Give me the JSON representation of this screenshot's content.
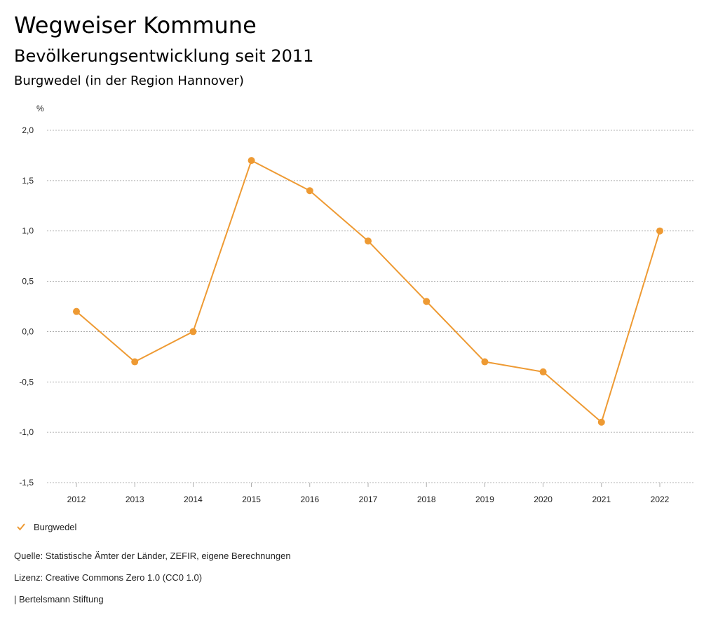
{
  "header": {
    "title": "Wegweiser Kommune",
    "subtitle": "Bevölkerungsentwicklung seit 2011",
    "region": "Burgwedel (in der Region Hannover)"
  },
  "chart_data": {
    "type": "line",
    "title": "Bevölkerungsentwicklung seit 2011",
    "subtitle": "Burgwedel (in der Region Hannover)",
    "ylabel": "%",
    "xlabel": "",
    "categories": [
      "2012",
      "2013",
      "2014",
      "2015",
      "2016",
      "2017",
      "2018",
      "2019",
      "2020",
      "2021",
      "2022"
    ],
    "series": [
      {
        "name": "Burgwedel",
        "color": "#ee9a33",
        "values": [
          0.2,
          -0.3,
          0.0,
          1.7,
          1.4,
          0.9,
          0.3,
          -0.3,
          -0.4,
          -0.9,
          1.0
        ]
      }
    ],
    "ylim": [
      -1.5,
      2.0
    ],
    "yticks": [
      2.0,
      1.5,
      1.0,
      0.5,
      0.0,
      -0.5,
      -1.0,
      -1.5
    ],
    "ytick_labels": [
      "2,0",
      "1,5",
      "1,0",
      "0,5",
      "0,0",
      "-0,5",
      "-1,0",
      "-1,5"
    ],
    "grid": true,
    "legend_position": "bottom-left"
  },
  "legend": {
    "label": "Burgwedel",
    "icon": "check-icon"
  },
  "footer": {
    "source": "Quelle: Statistische Ämter der Länder, ZEFIR, eigene Berechnungen",
    "license": "Lizenz: Creative Commons Zero 1.0 (CC0 1.0)",
    "publisher": "| Bertelsmann Stiftung"
  }
}
